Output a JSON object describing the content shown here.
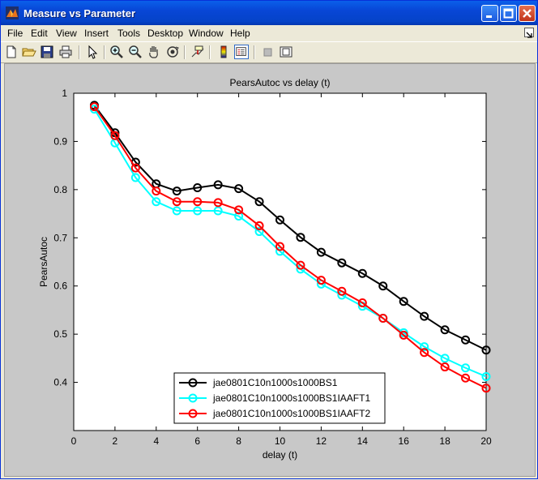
{
  "window": {
    "title": "Measure vs Parameter"
  },
  "menu": [
    "File",
    "Edit",
    "View",
    "Insert",
    "Tools",
    "Desktop",
    "Window",
    "Help"
  ],
  "toolbar_icons": [
    "new-file-icon",
    "open-folder-icon",
    "save-icon",
    "print-icon",
    "pointer-icon",
    "zoom-in-icon",
    "zoom-out-icon",
    "pan-hand-icon",
    "rotate-3d-icon",
    "data-cursor-icon",
    "colorbar-icon",
    "legend-icon",
    "hide-plot-tools-icon",
    "show-plot-tools-icon"
  ],
  "colors": {
    "series1": "#000000",
    "series2": "#00ffff",
    "series3": "#ff0000",
    "titlebar": "#0a5fea"
  },
  "chart_data": {
    "type": "line",
    "title": "PearsAutoc  vs delay (t)",
    "xlabel": "delay (t)",
    "ylabel": "PearsAutoc",
    "xlim": [
      0,
      20
    ],
    "ylim": [
      0.3,
      1
    ],
    "xticks": [
      "0",
      "2",
      "4",
      "6",
      "8",
      "10",
      "12",
      "14",
      "16",
      "18",
      "20"
    ],
    "yticks": [
      "0.4",
      "0.5",
      "0.6",
      "0.7",
      "0.8",
      "0.9",
      "1"
    ],
    "grid": false,
    "legend_position": "bottom-center",
    "marker": "circle",
    "x": [
      1,
      2,
      3,
      4,
      5,
      6,
      7,
      8,
      9,
      10,
      11,
      12,
      13,
      14,
      15,
      16,
      17,
      18,
      19,
      20
    ],
    "series": [
      {
        "name": "jae0801C10n1000s1000BS1",
        "color": "#000000",
        "values": [
          0.975,
          0.918,
          0.857,
          0.812,
          0.797,
          0.804,
          0.81,
          0.802,
          0.775,
          0.737,
          0.701,
          0.67,
          0.648,
          0.626,
          0.6,
          0.568,
          0.537,
          0.509,
          0.488,
          0.467
        ]
      },
      {
        "name": "jae0801C10n1000s1000BS1IAAFT1",
        "color": "#00ffff",
        "values": [
          0.967,
          0.897,
          0.825,
          0.775,
          0.756,
          0.756,
          0.756,
          0.745,
          0.713,
          0.672,
          0.635,
          0.604,
          0.581,
          0.558,
          0.533,
          0.503,
          0.474,
          0.45,
          0.43,
          0.412
        ]
      },
      {
        "name": "jae0801C10n1000s1000BS1IAAFT2",
        "color": "#ff0000",
        "values": [
          0.972,
          0.912,
          0.845,
          0.797,
          0.775,
          0.775,
          0.773,
          0.758,
          0.725,
          0.682,
          0.643,
          0.612,
          0.589,
          0.565,
          0.533,
          0.498,
          0.462,
          0.432,
          0.409,
          0.388
        ]
      }
    ]
  }
}
